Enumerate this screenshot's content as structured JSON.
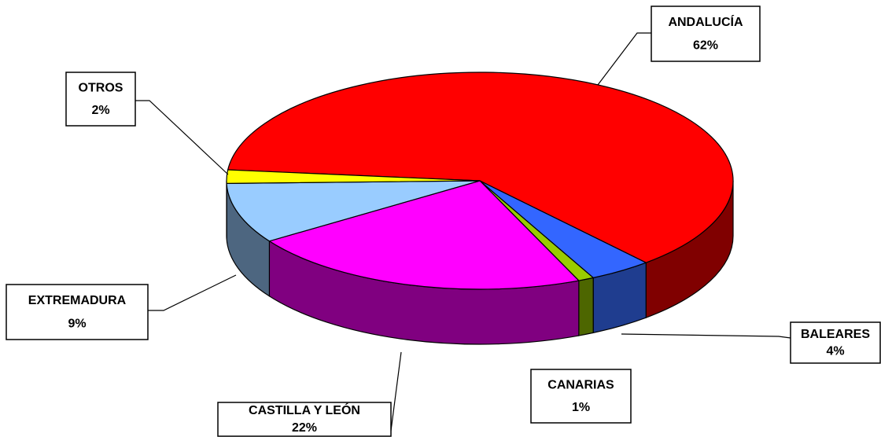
{
  "chart_data": {
    "type": "pie3d",
    "categories": [
      "ANDALUCÍA",
      "BALEARES",
      "CANARIAS",
      "CASTILLA Y LEÓN",
      "EXTREMADURA",
      "OTROS"
    ],
    "values": [
      62,
      4,
      1,
      22,
      9,
      2
    ],
    "value_labels": [
      "62%",
      "4%",
      "1%",
      "22%",
      "9%",
      "2%"
    ],
    "colors": [
      "#ff0000",
      "#3366ff",
      "#99cc00",
      "#ff00ff",
      "#99ccff",
      "#ffff00"
    ],
    "side_colors": [
      "#800000",
      "#1f3d8f",
      "#4d6600",
      "#800080",
      "#4d6680",
      "#808000"
    ]
  }
}
